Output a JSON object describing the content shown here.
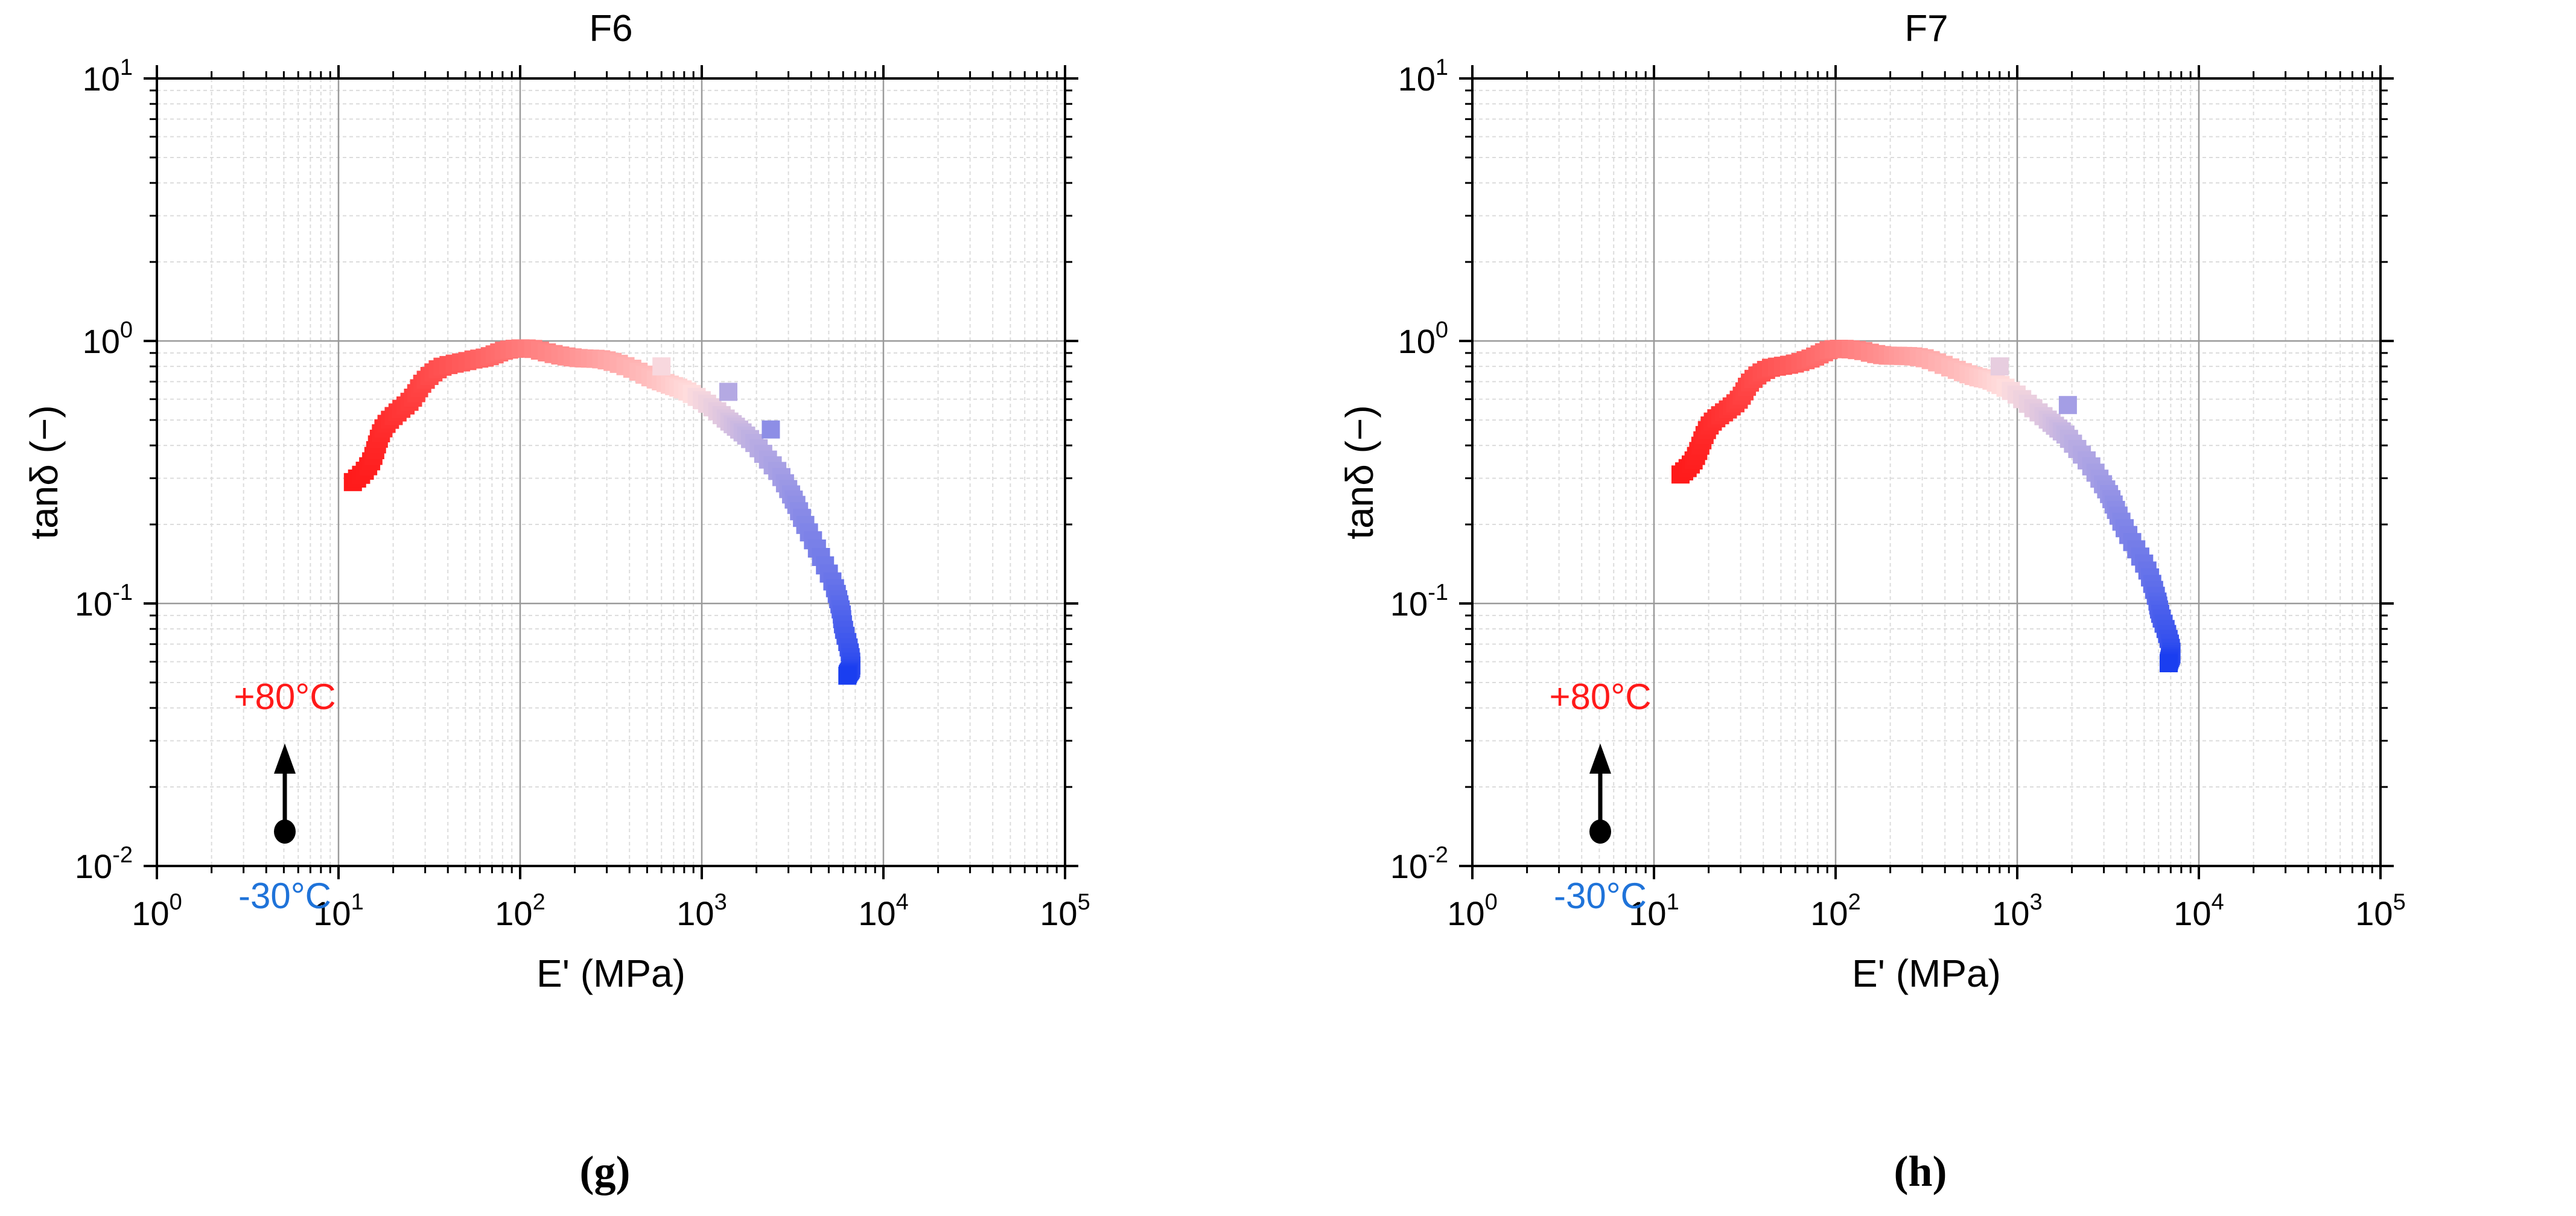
{
  "chart_data": [
    {
      "type": "scatter",
      "panel_label": "(g)",
      "title": "F6",
      "xlabel": "E' (MPa)",
      "ylabel": "tanδ (−)",
      "xscale": "log",
      "yscale": "log",
      "xlim": [
        1,
        100000
      ],
      "ylim": [
        0.01,
        10
      ],
      "x_ticks": [
        {
          "base": "10",
          "exp": "0"
        },
        {
          "base": "10",
          "exp": "1"
        },
        {
          "base": "10",
          "exp": "2"
        },
        {
          "base": "10",
          "exp": "3"
        },
        {
          "base": "10",
          "exp": "4"
        },
        {
          "base": "10",
          "exp": "5"
        }
      ],
      "y_ticks": [
        {
          "base": "10",
          "exp": "-2"
        },
        {
          "base": "10",
          "exp": "-1"
        },
        {
          "base": "10",
          "exp": "0"
        },
        {
          "base": "10",
          "exp": "1"
        }
      ],
      "grid": true,
      "color_scale": {
        "hot_label": "+80°C",
        "cold_label": "-30°C",
        "hot_color": "#ff1a1a",
        "cold_color": "#1a3ef0",
        "mid_color": "#ffffff"
      },
      "curve_anchors": [
        [
          12,
          0.29
        ],
        [
          15,
          0.36
        ],
        [
          18,
          0.45
        ],
        [
          22,
          0.56
        ],
        [
          28,
          0.68
        ],
        [
          38,
          0.78
        ],
        [
          55,
          0.87
        ],
        [
          80,
          0.91
        ],
        [
          120,
          0.92
        ],
        [
          180,
          0.89
        ],
        [
          280,
          0.84
        ],
        [
          420,
          0.78
        ],
        [
          600,
          0.71
        ],
        [
          850,
          0.63
        ],
        [
          1150,
          0.56
        ],
        [
          1500,
          0.48
        ],
        [
          2000,
          0.4
        ],
        [
          2600,
          0.32
        ],
        [
          3300,
          0.24
        ],
        [
          4200,
          0.17
        ],
        [
          5200,
          0.12
        ],
        [
          6000,
          0.09
        ],
        [
          6400,
          0.07
        ],
        [
          6500,
          0.058
        ],
        [
          6500,
          0.052
        ]
      ],
      "outliers": [
        [
          1400,
          0.64
        ],
        [
          600,
          0.8
        ],
        [
          2400,
          0.46
        ]
      ]
    },
    {
      "type": "scatter",
      "panel_label": "(h)",
      "title": "F7",
      "xlabel": "E' (MPa)",
      "ylabel": "tanδ (−)",
      "xscale": "log",
      "yscale": "log",
      "xlim": [
        1,
        100000
      ],
      "ylim": [
        0.01,
        10
      ],
      "x_ticks": [
        {
          "base": "10",
          "exp": "0"
        },
        {
          "base": "10",
          "exp": "1"
        },
        {
          "base": "10",
          "exp": "2"
        },
        {
          "base": "10",
          "exp": "3"
        },
        {
          "base": "10",
          "exp": "4"
        },
        {
          "base": "10",
          "exp": "5"
        }
      ],
      "y_ticks": [
        {
          "base": "10",
          "exp": "-2"
        },
        {
          "base": "10",
          "exp": "-1"
        },
        {
          "base": "10",
          "exp": "0"
        },
        {
          "base": "10",
          "exp": "1"
        }
      ],
      "grid": true,
      "color_scale": {
        "hot_label": "+80°C",
        "cold_label": "-30°C",
        "hot_color": "#ff1a1a",
        "cold_color": "#1a3ef0",
        "mid_color": "#ffffff"
      },
      "curve_anchors": [
        [
          14,
          0.31
        ],
        [
          17,
          0.38
        ],
        [
          21,
          0.47
        ],
        [
          26,
          0.57
        ],
        [
          33,
          0.68
        ],
        [
          45,
          0.78
        ],
        [
          65,
          0.86
        ],
        [
          95,
          0.91
        ],
        [
          140,
          0.92
        ],
        [
          210,
          0.89
        ],
        [
          320,
          0.84
        ],
        [
          480,
          0.78
        ],
        [
          700,
          0.71
        ],
        [
          1000,
          0.62
        ],
        [
          1400,
          0.52
        ],
        [
          1900,
          0.43
        ],
        [
          2500,
          0.34
        ],
        [
          3200,
          0.26
        ],
        [
          4000,
          0.19
        ],
        [
          5000,
          0.14
        ],
        [
          6000,
          0.1
        ],
        [
          6600,
          0.08
        ],
        [
          6900,
          0.066
        ],
        [
          7000,
          0.058
        ]
      ],
      "outliers": [
        [
          1900,
          0.57
        ],
        [
          800,
          0.8
        ]
      ]
    }
  ]
}
